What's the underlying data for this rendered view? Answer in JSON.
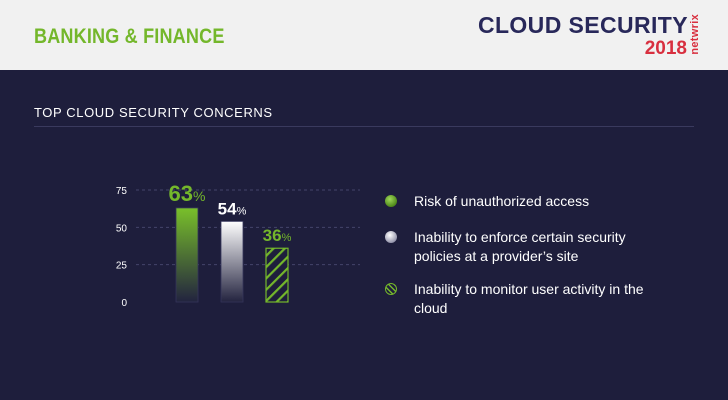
{
  "header": {
    "section": "BANKING & FINANCE",
    "brand_title": "CLOUD SECURITY",
    "brand_year": "2018",
    "brand_logo": "netwrix"
  },
  "colors": {
    "background": "#1e1e3c",
    "header_bg": "#f1f1f1",
    "accent_green": "#74b72b",
    "accent_red": "#d82f3f",
    "navy": "#28285a"
  },
  "chart_data": {
    "type": "bar",
    "title": "TOP CLOUD SECURITY CONCERNS",
    "categories": [
      "Risk of unauthorized access",
      "Inability to enforce certain security policies at a provider’s site",
      "Inability to monitor user activity in the cloud"
    ],
    "values": [
      63,
      54,
      36
    ],
    "value_labels": [
      "63",
      "54",
      "36"
    ],
    "value_suffix": "%",
    "ylim": [
      0,
      75
    ],
    "yticks": [
      "0",
      "25",
      "50",
      "75"
    ],
    "grid": true,
    "legend_position": "right",
    "series_styles": [
      "green-gradient",
      "white-gradient",
      "green-hatch"
    ]
  }
}
